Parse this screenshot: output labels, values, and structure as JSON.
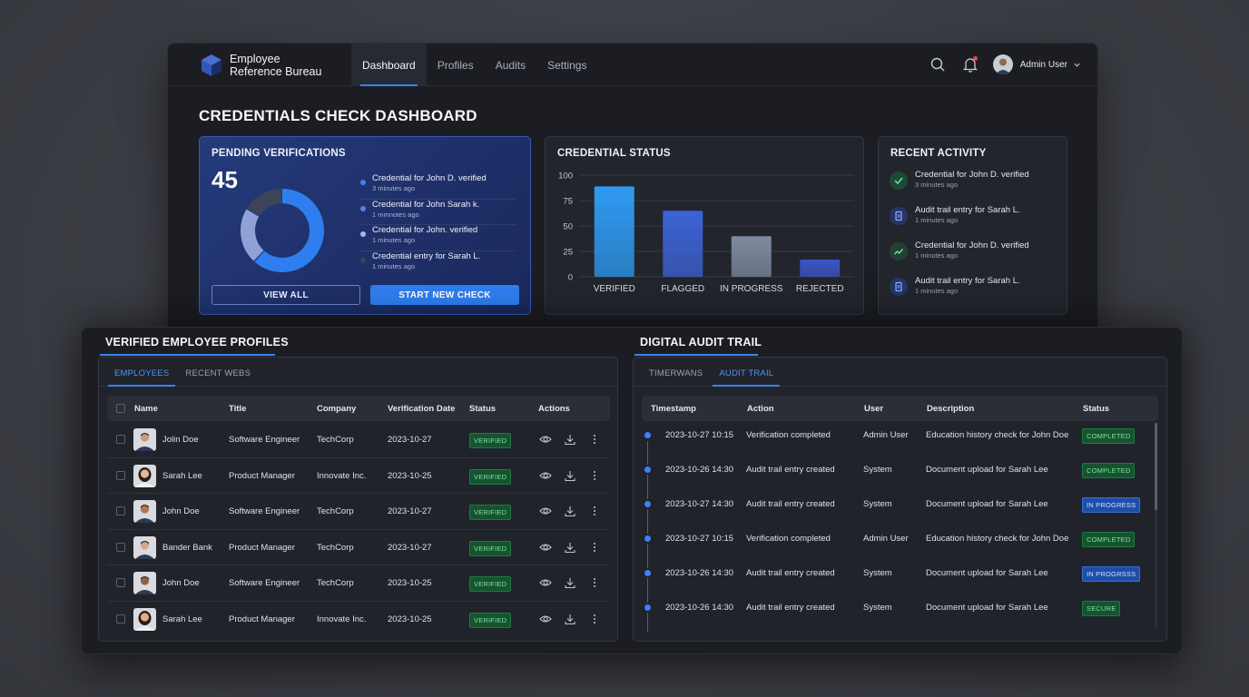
{
  "app": {
    "name_line1": "Employee",
    "name_line2": "Reference Bureau",
    "user_name": "Admin User"
  },
  "nav": [
    "Dashboard",
    "Profiles",
    "Audits",
    "Settings"
  ],
  "page_title": "CREDENTIALS CHECK DASHBOARD",
  "pending": {
    "title": "PENDING VERIFICATIONS",
    "count": "45",
    "donut_segments": [
      {
        "value": 62,
        "color": "#2f7ef0"
      },
      {
        "value": 22,
        "color": "#8ea2d6"
      },
      {
        "value": 16,
        "color": "#3c4558"
      }
    ],
    "items": [
      {
        "text": "Credential for John D. verified",
        "time": "3 minutes ago",
        "dot": "#3b82f6"
      },
      {
        "text": "Credential for John Sarah k.",
        "time": "1 mmnotes ago",
        "dot": "#5d7fe0"
      },
      {
        "text": "Credential for John. verified",
        "time": "1 minutes ago",
        "dot": "#aab8e0"
      },
      {
        "text": "Credential entry for Sarah L.",
        "time": "1 minutes ago",
        "dot": "#3c4558"
      }
    ],
    "view_all": "VIEW ALL",
    "start_new": "START NEW CHECK"
  },
  "status": {
    "title": "CREDENTIAL STATUS"
  },
  "chart_data": {
    "type": "bar",
    "title": "CREDENTIAL STATUS",
    "categories": [
      "VERIFIED",
      "FLAGGED",
      "IN PROGRESS",
      "REJECTED"
    ],
    "values": [
      89,
      65,
      40,
      17
    ],
    "ylim": [
      0,
      100
    ],
    "yticks": [
      0,
      25,
      50,
      75,
      100
    ],
    "colors": [
      "#2e9af2",
      "#3d63d6",
      "#7f8aa0",
      "#3b55c8"
    ],
    "grid": true
  },
  "activity": {
    "title": "RECENT ACTIVITY",
    "items": [
      {
        "text": "Credential for John D. verified",
        "time": "3 minutes ago",
        "icon": "check-icon"
      },
      {
        "text": "Audit trail entry for Sarah L.",
        "time": "1 minutes ago",
        "icon": "document-icon"
      },
      {
        "text": "Credential for John D. verified",
        "time": "1 minutes ago",
        "icon": "trend-icon"
      },
      {
        "text": "Audit trail entry for Sarah L.",
        "time": "1 minutes ago",
        "icon": "document-icon"
      }
    ]
  },
  "profiles": {
    "title": "VERIFIED EMPLOYEE PROFILES",
    "tabs": [
      "EMPLOYEES",
      "RECENT WEBS"
    ],
    "columns": [
      "Name",
      "Title",
      "Company",
      "Verification Date",
      "Status",
      "Actions"
    ],
    "rows": [
      {
        "name": "Jolin Doe",
        "title": "Software Engineer",
        "company": "TechCorp",
        "date": "2023-10-27",
        "status": "VERIFIED",
        "avatar": "m1"
      },
      {
        "name": "Sarah Lee",
        "title": "Product Manager",
        "company": "Innovate Inc.",
        "date": "2023-10-25",
        "status": "VERIFIED",
        "avatar": "f1"
      },
      {
        "name": "John Doe",
        "title": "Software Engineer",
        "company": "TechCorp",
        "date": "2023-10-27",
        "status": "VERIFIED",
        "avatar": "m2"
      },
      {
        "name": "Bander Bank",
        "title": "Product Manager",
        "company": "TechCorp",
        "date": "2023-10-27",
        "status": "VERIFIED",
        "avatar": "m3"
      },
      {
        "name": "John Doe",
        "title": "Software Engineer",
        "company": "TechCorp",
        "date": "2023-10-25",
        "status": "VERIFIED",
        "avatar": "m4"
      },
      {
        "name": "Sarah Lee",
        "title": "Product Manager",
        "company": "Innovate Inc.",
        "date": "2023-10-25",
        "status": "VERIFIED",
        "avatar": "f2"
      }
    ]
  },
  "audit": {
    "title": "DIGITAL AUDIT TRAIL",
    "tabs": [
      "TIMERWANS",
      "AUDIT TRAIL"
    ],
    "columns": [
      "Timestamp",
      "Action",
      "User",
      "Description",
      "Status"
    ],
    "rows": [
      {
        "timestamp": "2023-10-27 10:15",
        "action": "Verification completed",
        "user": "Admin User",
        "description": "Education history check for John Doe",
        "status": "COMPLETED",
        "tone": "green"
      },
      {
        "timestamp": "2023-10-26 14:30",
        "action": "Audit trail entry created",
        "user": "System",
        "description": "Document upload for Sarah Lee",
        "status": "COMPLETED",
        "tone": "green"
      },
      {
        "timestamp": "2023-10-27 14:30",
        "action": "Audit trail entry created",
        "user": "System",
        "description": "Document upload for Sarah Lee",
        "status": "IN PROGRESS",
        "tone": "blue"
      },
      {
        "timestamp": "2023-10-27 10:15",
        "action": "Verification completed",
        "user": "Admin User",
        "description": "Education history check for John Doe",
        "status": "COMPLETED",
        "tone": "green"
      },
      {
        "timestamp": "2023-10-26 14:30",
        "action": "Audit trail entry created",
        "user": "System",
        "description": "Document upload for Sarah Lee",
        "status": "IN PROGRSSS",
        "tone": "blue"
      },
      {
        "timestamp": "2023-10-26 14:30",
        "action": "Audit trail entry created",
        "user": "System",
        "description": "Document upload for Sarah Lee",
        "status": "SECURE",
        "tone": "green"
      }
    ]
  }
}
